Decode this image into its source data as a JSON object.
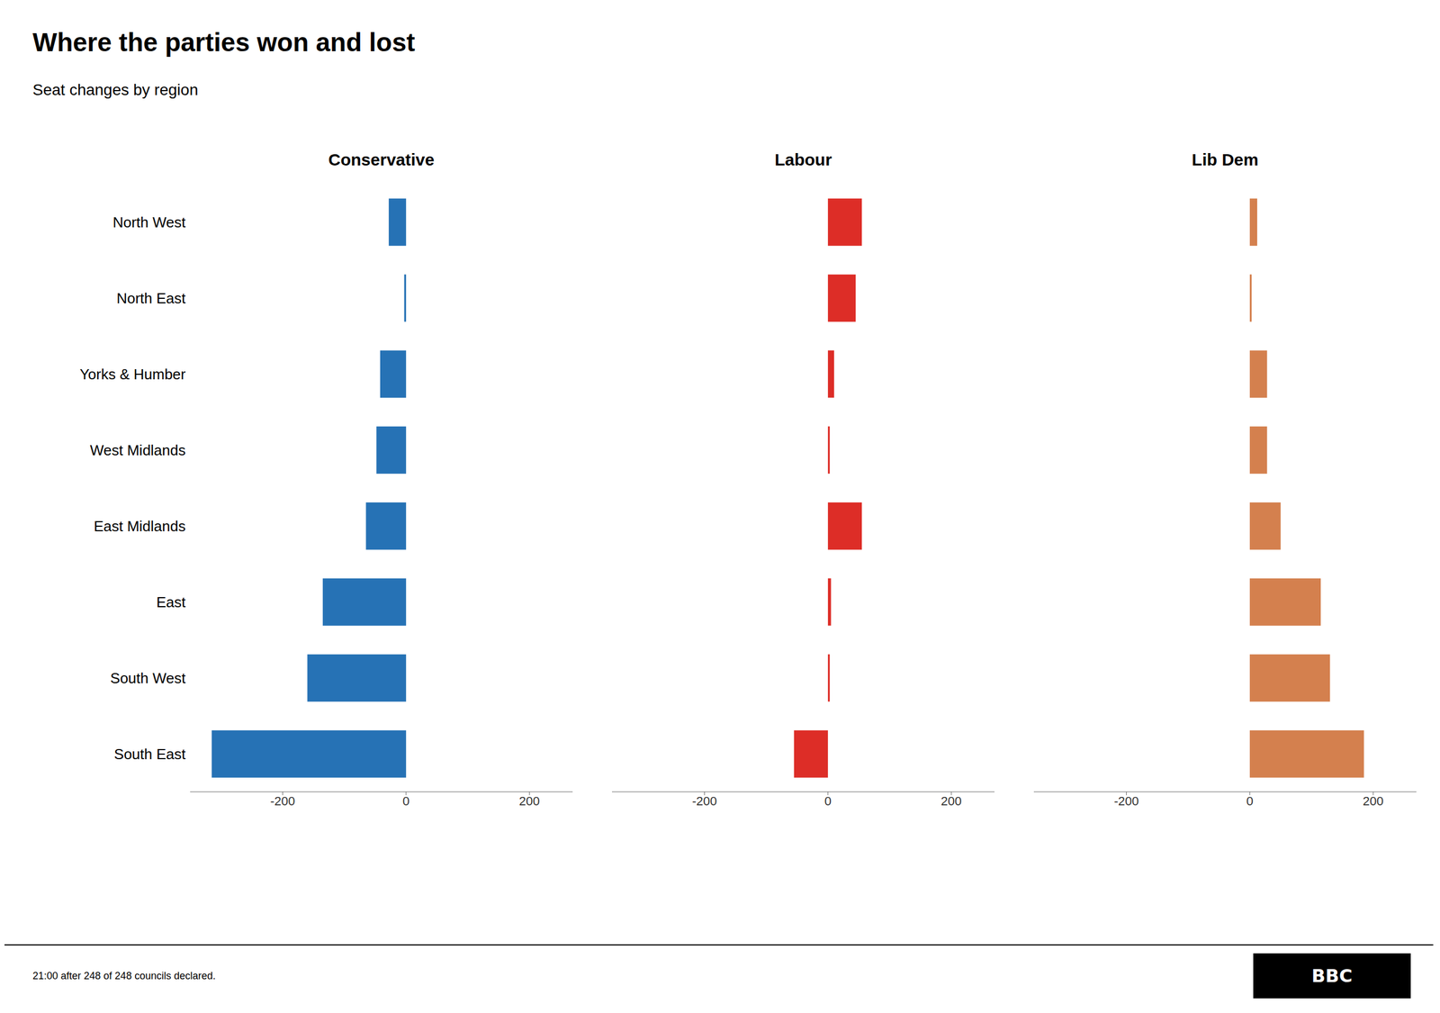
{
  "chart_data": {
    "type": "bar",
    "orientation": "horizontal",
    "title": "Where the parties won and lost",
    "subtitle": "Seat changes by region",
    "categories": [
      "North West",
      "North East",
      "Yorks & Humber",
      "West Midlands",
      "East Midlands",
      "East",
      "South West",
      "South East"
    ],
    "series": [
      {
        "name": "Conservative",
        "color": "#2672b5",
        "values": [
          -28,
          -3,
          -42,
          -48,
          -65,
          -135,
          -160,
          -315
        ]
      },
      {
        "name": "Labour",
        "color": "#dd2d27",
        "values": [
          55,
          45,
          10,
          3,
          55,
          5,
          3,
          -55
        ]
      },
      {
        "name": "Lib Dem",
        "color": "#d4804e",
        "values": [
          12,
          3,
          28,
          28,
          50,
          115,
          130,
          185
        ]
      }
    ],
    "xlim": [
      -350,
      270
    ],
    "xticks": [
      -200,
      0,
      200
    ],
    "grid": false,
    "annotations": [
      "21:00 after 248 of 248 councils declared.",
      "BBC"
    ]
  }
}
